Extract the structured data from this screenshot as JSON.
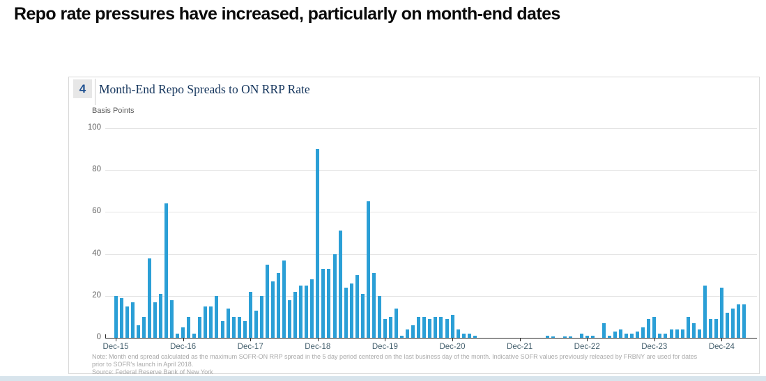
{
  "page": {
    "title": "Repo rate pressures have increased, particularly on month-end dates"
  },
  "figure": {
    "number": "4",
    "title": "Month-End Repo Spreads to ON RRP Rate",
    "unit_label": "Basis Points",
    "note_line1": "Note: Month end spread calculated as the maximum SOFR-ON RRP spread in the 5 day period centered on the last business day of the month. Indicative SOFR values previously released by FRBNY are used for dates",
    "note_line2": "prior to SOFR's launch in April 2018.",
    "source": "Source: Federal Reserve Bank of New York"
  },
  "colors": {
    "bar": "#2b9fd6",
    "badge_text": "#1d4f91",
    "badge_background": "#e7e7e7",
    "chart_title": "#17375e",
    "x_label": "#45606e",
    "y_label": "#636363",
    "gridline": "#e4e4e4",
    "axis": "#2b2b2b",
    "note_text": "#a8a8a8",
    "bottom_band": "#d8e4ec"
  },
  "chart_data": {
    "type": "bar",
    "title": "Month-End Repo Spreads to ON RRP Rate",
    "xlabel": "",
    "ylabel": "Basis Points",
    "ylim": [
      0,
      100
    ],
    "y_ticks": [
      0,
      20,
      40,
      60,
      80,
      100
    ],
    "grid": "horizontal",
    "legend": "none",
    "x_tick_every": 12,
    "x_tick_labels": [
      "Dec-15",
      "Dec-16",
      "Dec-17",
      "Dec-18",
      "Dec-19",
      "Dec-20",
      "Dec-21",
      "Dec-22",
      "Dec-23",
      "Dec-24"
    ],
    "categories": [
      "Dec-15",
      "Jan-16",
      "Feb-16",
      "Mar-16",
      "Apr-16",
      "May-16",
      "Jun-16",
      "Jul-16",
      "Aug-16",
      "Sep-16",
      "Oct-16",
      "Nov-16",
      "Dec-16",
      "Jan-17",
      "Feb-17",
      "Mar-17",
      "Apr-17",
      "May-17",
      "Jun-17",
      "Jul-17",
      "Aug-17",
      "Sep-17",
      "Oct-17",
      "Nov-17",
      "Dec-17",
      "Jan-18",
      "Feb-18",
      "Mar-18",
      "Apr-18",
      "May-18",
      "Jun-18",
      "Jul-18",
      "Aug-18",
      "Sep-18",
      "Oct-18",
      "Nov-18",
      "Dec-18",
      "Jan-19",
      "Feb-19",
      "Mar-19",
      "Apr-19",
      "May-19",
      "Jun-19",
      "Jul-19",
      "Aug-19",
      "Sep-19",
      "Oct-19",
      "Nov-19",
      "Dec-19",
      "Jan-20",
      "Feb-20",
      "Mar-20",
      "Apr-20",
      "May-20",
      "Jun-20",
      "Jul-20",
      "Aug-20",
      "Sep-20",
      "Oct-20",
      "Nov-20",
      "Dec-20",
      "Jan-21",
      "Feb-21",
      "Mar-21",
      "Apr-21",
      "May-21",
      "Jun-21",
      "Jul-21",
      "Aug-21",
      "Sep-21",
      "Oct-21",
      "Nov-21",
      "Dec-21",
      "Jan-22",
      "Feb-22",
      "Mar-22",
      "Apr-22",
      "May-22",
      "Jun-22",
      "Jul-22",
      "Aug-22",
      "Sep-22",
      "Oct-22",
      "Nov-22",
      "Dec-22",
      "Jan-23",
      "Feb-23",
      "Mar-23",
      "Apr-23",
      "May-23",
      "Jun-23",
      "Jul-23",
      "Aug-23",
      "Sep-23",
      "Oct-23",
      "Nov-23",
      "Dec-23",
      "Jan-24",
      "Feb-24",
      "Mar-24",
      "Apr-24",
      "May-24",
      "Jun-24",
      "Jul-24",
      "Aug-24",
      "Sep-24",
      "Oct-24",
      "Nov-24",
      "Dec-24",
      "Jan-25",
      "Feb-25",
      "Mar-25",
      "Apr-25"
    ],
    "values": [
      20,
      19,
      15,
      17,
      6,
      10,
      38,
      17,
      21,
      64,
      18,
      2,
      5,
      10,
      2,
      10,
      15,
      15,
      20,
      8,
      14,
      10,
      10,
      8,
      22,
      13,
      20,
      35,
      27,
      31,
      37,
      18,
      22,
      25,
      25,
      28,
      90,
      33,
      33,
      40,
      51,
      24,
      26,
      30,
      21,
      65,
      31,
      20,
      9,
      10,
      14,
      1,
      4,
      6,
      10,
      10,
      9,
      10,
      10,
      9,
      11,
      4,
      2,
      2,
      1,
      0,
      0,
      0,
      0,
      0,
      0,
      0,
      0,
      0,
      0,
      0,
      0,
      1,
      0.5,
      0,
      0.5,
      0.5,
      0,
      2,
      1,
      1,
      0,
      7,
      1,
      3,
      4,
      2,
      2,
      3,
      5,
      9,
      10,
      2,
      2,
      4,
      4,
      4,
      10,
      7,
      4,
      25,
      9,
      9,
      24,
      12,
      14,
      16,
      16
    ]
  }
}
